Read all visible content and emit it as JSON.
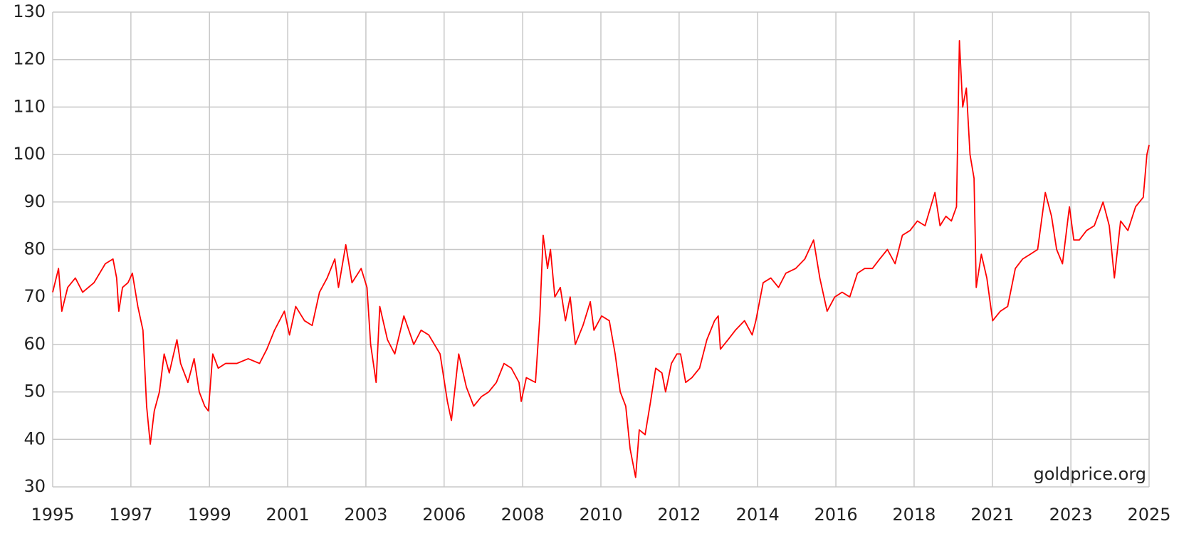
{
  "chart_data": {
    "type": "line",
    "annotation": "goldprice.org",
    "x": [
      1995.0,
      1995.16,
      1995.25,
      1995.41,
      1995.62,
      1995.82,
      1996.13,
      1996.44,
      1996.65,
      1996.75,
      1996.81,
      1996.91,
      1997.06,
      1997.18,
      1997.33,
      1997.47,
      1997.57,
      1997.67,
      1997.78,
      1997.92,
      1998.05,
      1998.19,
      1998.4,
      1998.5,
      1998.7,
      1998.87,
      1999.01,
      1999.16,
      1999.26,
      1999.38,
      1999.53,
      1999.73,
      2000.04,
      2000.35,
      2000.66,
      2000.86,
      2001.07,
      2001.34,
      2001.48,
      2001.65,
      2001.89,
      2002.1,
      2002.3,
      2002.51,
      2002.72,
      2002.82,
      2003.02,
      2003.19,
      2003.44,
      2003.6,
      2003.7,
      2003.85,
      2003.95,
      2004.16,
      2004.36,
      2004.61,
      2004.88,
      2005.08,
      2005.29,
      2005.6,
      2005.8,
      2005.91,
      2006.11,
      2006.32,
      2006.52,
      2006.73,
      2006.93,
      2007.14,
      2007.35,
      2007.55,
      2007.76,
      2007.82,
      2007.96,
      2008.21,
      2008.33,
      2008.42,
      2008.54,
      2008.62,
      2008.74,
      2008.89,
      2009.03,
      2009.16,
      2009.3,
      2009.51,
      2009.71,
      2009.81,
      2010.02,
      2010.23,
      2010.39,
      2010.53,
      2010.68,
      2010.8,
      2010.95,
      2011.05,
      2011.21,
      2011.36,
      2011.5,
      2011.67,
      2011.77,
      2011.93,
      2012.08,
      2012.18,
      2012.32,
      2012.49,
      2012.7,
      2012.9,
      2013.11,
      2013.21,
      2013.27,
      2013.48,
      2013.68,
      2013.93,
      2014.14,
      2014.24,
      2014.44,
      2014.65,
      2014.86,
      2015.06,
      2015.33,
      2015.58,
      2015.82,
      2015.99,
      2016.19,
      2016.4,
      2016.6,
      2016.81,
      2017.02,
      2017.22,
      2017.43,
      2017.63,
      2017.84,
      2018.05,
      2018.25,
      2018.46,
      2018.66,
      2018.87,
      2019.14,
      2019.28,
      2019.44,
      2019.59,
      2019.73,
      2019.81,
      2019.9,
      2020.0,
      2020.1,
      2020.21,
      2020.27,
      2020.41,
      2020.56,
      2020.72,
      2020.93,
      2021.13,
      2021.34,
      2021.54,
      2021.75,
      2021.95,
      2022.16,
      2022.33,
      2022.47,
      2022.63,
      2022.82,
      2022.94,
      2023.09,
      2023.29,
      2023.5,
      2023.74,
      2023.91,
      2024.05,
      2024.22,
      2024.42,
      2024.63,
      2024.84,
      2024.94,
      2025.0
    ],
    "series": [
      {
        "color": "#ff0000",
        "values": [
          71,
          76,
          67,
          72,
          74,
          71,
          73,
          77,
          78,
          74,
          67,
          72,
          73,
          75,
          68,
          63,
          47,
          39,
          46,
          50,
          58,
          54,
          61,
          56,
          52,
          57,
          50,
          47,
          46,
          58,
          55,
          56,
          56,
          57,
          56,
          59,
          63,
          67,
          62,
          68,
          65,
          64,
          71,
          74,
          78,
          72,
          81,
          73,
          76,
          72,
          60,
          52,
          68,
          61,
          58,
          66,
          60,
          63,
          62,
          58,
          48,
          44,
          58,
          51,
          47,
          49,
          50,
          52,
          56,
          55,
          52,
          48,
          53,
          52,
          66,
          83,
          76,
          80,
          70,
          72,
          65,
          70,
          60,
          64,
          69,
          63,
          66,
          65,
          58,
          50,
          47,
          38,
          32,
          42,
          41,
          48,
          55,
          54,
          50,
          56,
          58,
          58,
          52,
          53,
          55,
          61,
          65,
          66,
          59,
          61,
          63,
          65,
          62,
          65,
          73,
          74,
          72,
          75,
          76,
          78,
          82,
          74,
          67,
          70,
          71,
          70,
          75,
          76,
          76,
          78,
          80,
          77,
          83,
          84,
          86,
          85,
          92,
          85,
          87,
          86,
          89,
          124,
          110,
          114,
          100,
          95,
          72,
          79,
          74,
          65,
          67,
          68,
          76,
          78,
          79,
          80,
          92,
          87,
          80,
          77,
          89,
          82,
          82,
          84,
          85,
          90,
          85,
          74,
          86,
          84,
          89,
          91,
          100,
          102
        ]
      }
    ],
    "xlim": [
      1995,
      2025
    ],
    "xticks": [
      1995,
      {
        "value": 1997.14,
        "label": "1997"
      },
      {
        "value": 1999.29,
        "label": "1999"
      },
      {
        "value": 2001.43,
        "label": "2001"
      },
      {
        "value": 2003.57,
        "label": "2003"
      },
      {
        "value": 2005.71,
        "label": "2006"
      },
      {
        "value": 2007.86,
        "label": "2008"
      },
      2010,
      {
        "value": 2012.14,
        "label": "2012"
      },
      {
        "value": 2014.29,
        "label": "2014"
      },
      {
        "value": 2016.43,
        "label": "2016"
      },
      {
        "value": 2018.57,
        "label": "2018"
      },
      {
        "value": 2020.71,
        "label": "2021"
      },
      {
        "value": 2022.86,
        "label": "2023"
      },
      2025
    ],
    "ylim": [
      30,
      130
    ],
    "yticks": [
      30,
      40,
      50,
      60,
      70,
      80,
      90,
      100,
      110,
      120,
      130
    ],
    "grid": true
  }
}
